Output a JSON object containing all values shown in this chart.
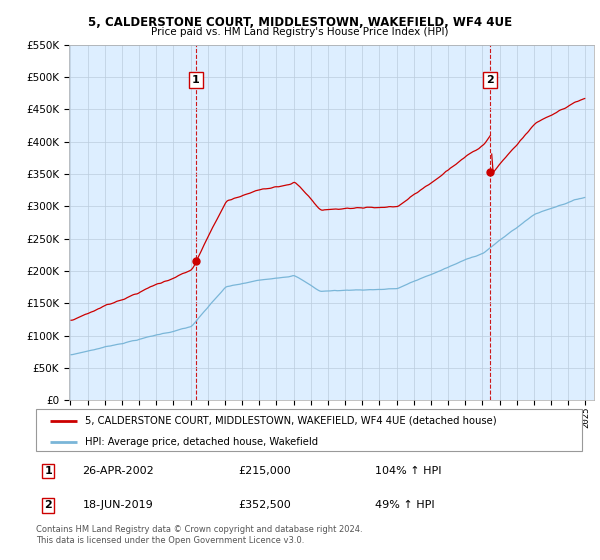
{
  "title1": "5, CALDERSTONE COURT, MIDDLESTOWN, WAKEFIELD, WF4 4UE",
  "title2": "Price paid vs. HM Land Registry's House Price Index (HPI)",
  "legend_line1": "5, CALDERSTONE COURT, MIDDLESTOWN, WAKEFIELD, WF4 4UE (detached house)",
  "legend_line2": "HPI: Average price, detached house, Wakefield",
  "transaction1_date": "26-APR-2002",
  "transaction1_price": "£215,000",
  "transaction1_hpi": "104% ↑ HPI",
  "transaction2_date": "18-JUN-2019",
  "transaction2_price": "£352,500",
  "transaction2_hpi": "49% ↑ HPI",
  "footnote": "Contains HM Land Registry data © Crown copyright and database right 2024.\nThis data is licensed under the Open Government Licence v3.0.",
  "hpi_color": "#7ab6d8",
  "price_color": "#cc0000",
  "background_color": "#ffffff",
  "chart_bg_color": "#ddeeff",
  "grid_color": "#bbccdd",
  "vline_color": "#cc0000",
  "ylim": [
    0,
    550000
  ],
  "yticks": [
    0,
    50000,
    100000,
    150000,
    200000,
    250000,
    300000,
    350000,
    400000,
    450000,
    500000,
    550000
  ],
  "transaction1_x": 2002.32,
  "transaction1_y": 215000,
  "transaction2_x": 2019.46,
  "transaction2_y": 352500,
  "xlim_left": 1995.0,
  "xlim_right": 2025.5
}
